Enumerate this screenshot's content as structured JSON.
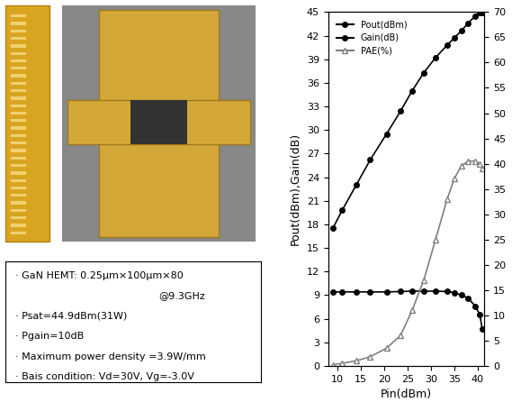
{
  "chart_data": {
    "type": "line",
    "x_label": "Pin(dBm)",
    "y_label": "Pout(dBm),Gain(dB)",
    "x": [
      9,
      11,
      14,
      17,
      20.5,
      23.5,
      26,
      28.5,
      31,
      33.5,
      35,
      36.5,
      38,
      39.5,
      40.5,
      41
    ],
    "series": [
      {
        "name": "Pout(dBm)",
        "color": "#000000",
        "marker": "circle",
        "line_style": "solid",
        "values": [
          17.5,
          19.8,
          23,
          26.2,
          29.5,
          32.4,
          35,
          37.3,
          39.2,
          40.8,
          41.7,
          42.6,
          43.6,
          44.5,
          44.9,
          44.9
        ]
      },
      {
        "name": "Gain(dB)",
        "color": "#000000",
        "marker": "circle",
        "line_style": "solid",
        "values": [
          9.4,
          9.4,
          9.4,
          9.4,
          9.4,
          9.45,
          9.5,
          9.5,
          9.5,
          9.45,
          9.3,
          9.0,
          8.6,
          7.6,
          6.5,
          4.7
        ]
      },
      {
        "name": "PAE(%)",
        "color": "#808080",
        "marker": "triangle",
        "line_style": "solid",
        "axis": "y2",
        "values": [
          0.2,
          0.5,
          1,
          1.8,
          3.5,
          6,
          11,
          17,
          25,
          33,
          37,
          39.5,
          40.5,
          40.5,
          40,
          39
        ]
      }
    ],
    "xlim": [
      8,
      41.5
    ],
    "xticks": [
      10,
      15,
      20,
      25,
      30,
      35,
      40
    ],
    "ylim": [
      0,
      45
    ],
    "yticks": [
      0,
      3,
      6,
      9,
      12,
      15,
      18,
      21,
      24,
      27,
      30,
      33,
      36,
      39,
      42,
      45
    ],
    "y2lim": [
      0,
      70
    ],
    "y2ticks": [
      0,
      5,
      10,
      15,
      20,
      25,
      30,
      35,
      40,
      45,
      50,
      55,
      60,
      65,
      70
    ],
    "legend": "upper left",
    "grid": false,
    "annotations": [
      "· GaN HEMT: 0.25μm×100μm×80",
      "@9.3GHz",
      "· Psat=44.9dBm(31W)",
      "· Pgain=10dB",
      "· Maximum power density =3.9W/mm",
      "· Bais condition: Vd=30V, Vg=-3.0V"
    ]
  }
}
